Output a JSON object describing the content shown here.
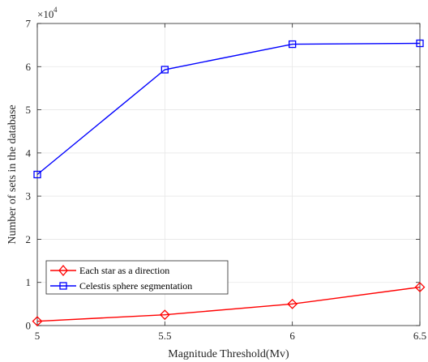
{
  "chart_data": {
    "type": "line",
    "xlabel": "Magnitude Threshold(Mv)",
    "ylabel": "Number of sets in the database",
    "y_exponent_base": "×10",
    "y_exponent_power": "4",
    "x": [
      5,
      5.5,
      6,
      6.5
    ],
    "x_tick_labels": [
      "5",
      "5.5",
      "6",
      "6.5"
    ],
    "y_tick_labels": [
      "0",
      "1",
      "2",
      "3",
      "4",
      "5",
      "6",
      "7"
    ],
    "xlim": [
      5,
      6.5
    ],
    "ylim": [
      0,
      70000
    ],
    "grid": true,
    "legend_position": "bottom-left",
    "series": [
      {
        "name": "Each star as a direction",
        "color": "#ff0000",
        "marker": "diamond",
        "values": [
          1000,
          2500,
          5000,
          8900
        ]
      },
      {
        "name": "Celestis sphere segmentation",
        "color": "#0000ff",
        "marker": "square",
        "values": [
          35000,
          59300,
          65200,
          65400
        ]
      }
    ]
  }
}
